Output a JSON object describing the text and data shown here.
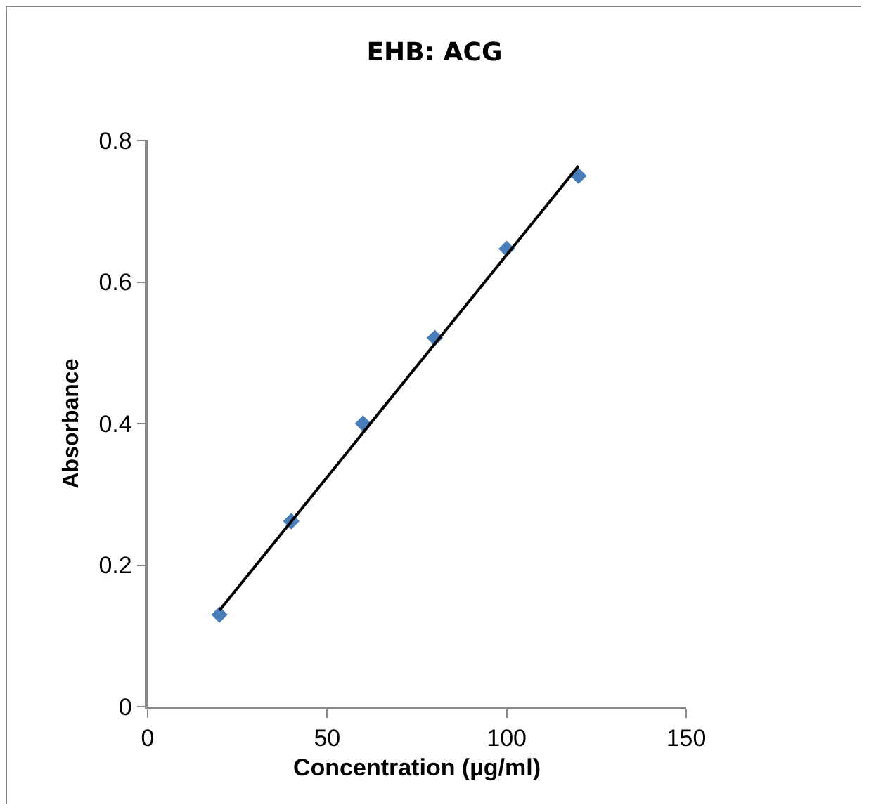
{
  "chart_data": {
    "type": "scatter",
    "title": "EHB: ACG",
    "xlabel": "Concentration (µg/ml)",
    "ylabel": "Absorbance",
    "x": [
      20,
      40,
      60,
      80,
      100,
      120
    ],
    "series": [
      {
        "color": "#4a7ebb",
        "marker": "diamond",
        "values": [
          0.13,
          0.262,
          0.4,
          0.521,
          0.647,
          0.75
        ]
      },
      {
        "type": "line",
        "color": "#000000",
        "x": [
          20,
          120
        ],
        "values": [
          0.136,
          0.764
        ],
        "marker": "none",
        "line_style": "solid"
      }
    ],
    "xlim": [
      0,
      150
    ],
    "xticks": [
      0,
      50,
      100,
      150
    ],
    "ylim": [
      0,
      0.8
    ],
    "yticks": [
      0,
      0.2,
      0.4,
      0.6,
      0.8
    ],
    "grid": false
  }
}
